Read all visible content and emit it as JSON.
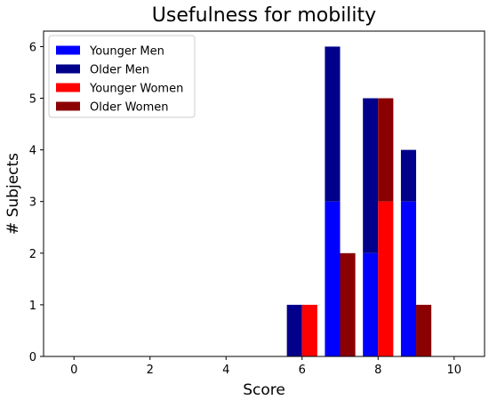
{
  "chart_data": {
    "type": "bar",
    "title": "Usefulness for mobility",
    "xlabel": "Score",
    "ylabel": "# Subjects",
    "xlim": [
      -0.8,
      10.8
    ],
    "ylim": [
      0,
      6.3
    ],
    "xticks": [
      0,
      2,
      4,
      6,
      8,
      10
    ],
    "yticks": [
      0,
      1,
      2,
      3,
      4,
      5,
      6
    ],
    "stacked_groups": "Men bars (left) stack Younger Men + Older Men; Women bars (right) stack Younger Women + Older Women",
    "bar_groups": [
      {
        "group": "men",
        "offset": -0.2,
        "series": [
          "Younger Men",
          "Older Men"
        ]
      },
      {
        "group": "women",
        "offset": 0.2,
        "series": [
          "Younger Women",
          "Older Women"
        ]
      }
    ],
    "x": [
      6,
      7,
      8,
      9
    ],
    "series": [
      {
        "name": "Younger Men",
        "color": "#0000ff",
        "values": [
          0,
          3,
          2,
          3
        ]
      },
      {
        "name": "Older Men",
        "color": "#00008b",
        "values": [
          1,
          3,
          3,
          1
        ]
      },
      {
        "name": "Younger Women",
        "color": "#ff0000",
        "values": [
          1,
          0,
          3,
          0
        ]
      },
      {
        "name": "Older Women",
        "color": "#8b0000",
        "values": [
          0,
          2,
          2,
          1
        ]
      }
    ],
    "legend": "top-left",
    "grid": false
  }
}
